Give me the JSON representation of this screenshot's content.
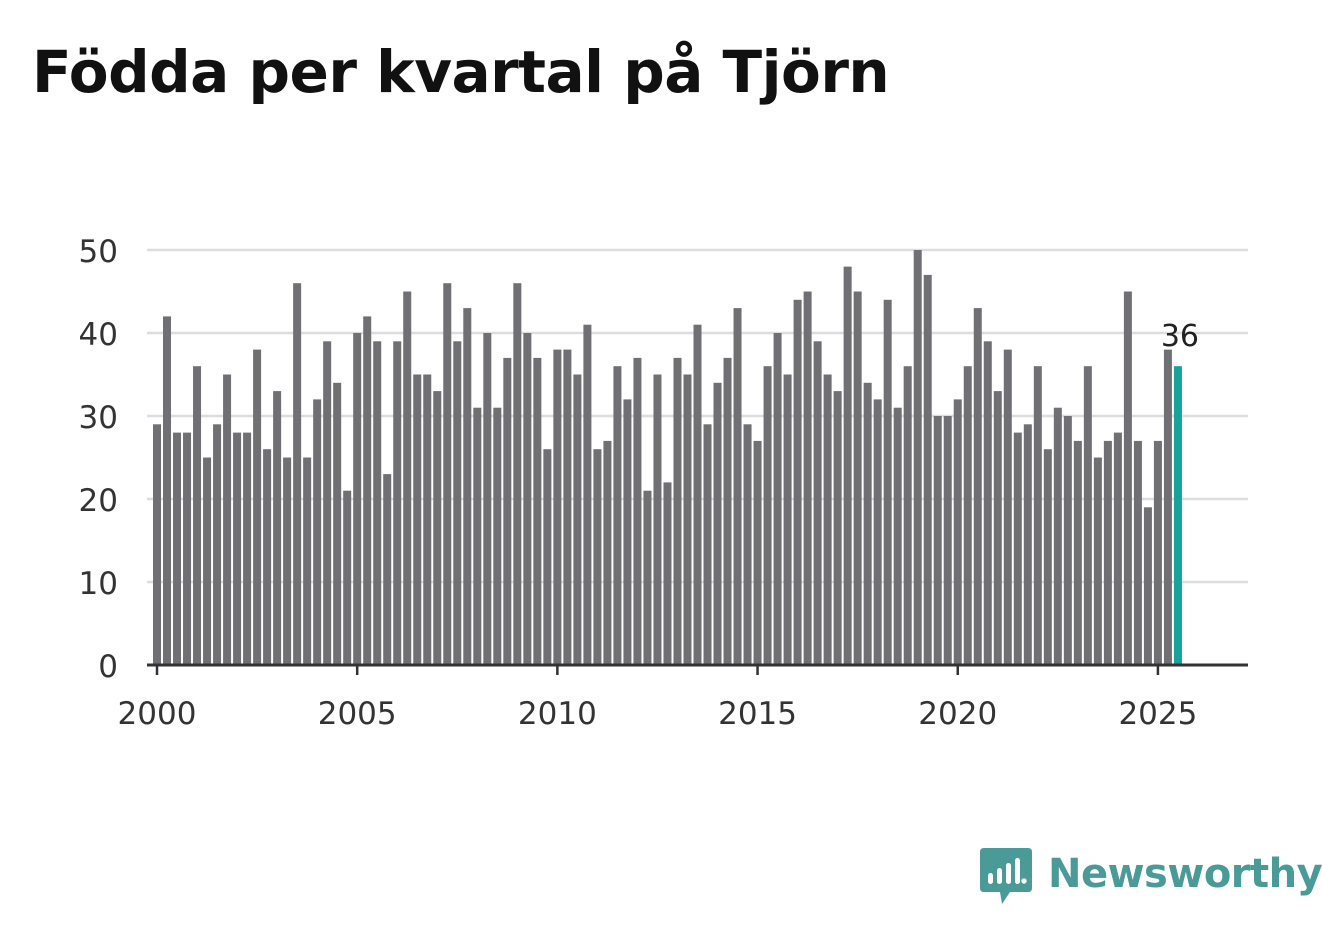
{
  "title": "Födda per kvartal på Tjörn",
  "brand": {
    "name": "Newsworthy",
    "icon": "newsworthy-logo-icon",
    "color": "#4a9a98"
  },
  "colors": {
    "bar": "#707074",
    "highlight": "#17a39b",
    "grid": "#dddddd",
    "axis": "#333333",
    "tick_text": "#333333"
  },
  "chart_data": {
    "type": "bar",
    "title": "Födda per kvartal på Tjörn",
    "xlabel": "",
    "ylabel": "",
    "x_start": 2000,
    "periods_per_year": 4,
    "values": [
      29,
      42,
      28,
      28,
      36,
      25,
      29,
      35,
      28,
      28,
      38,
      26,
      33,
      25,
      46,
      25,
      32,
      39,
      34,
      21,
      40,
      42,
      39,
      23,
      39,
      45,
      35,
      35,
      33,
      46,
      39,
      43,
      31,
      40,
      31,
      37,
      46,
      40,
      37,
      26,
      38,
      38,
      35,
      41,
      26,
      27,
      36,
      32,
      37,
      21,
      35,
      22,
      37,
      35,
      41,
      29,
      34,
      37,
      43,
      29,
      27,
      36,
      40,
      35,
      44,
      45,
      39,
      35,
      33,
      48,
      45,
      34,
      32,
      44,
      31,
      36,
      50,
      47,
      30,
      30,
      32,
      36,
      43,
      39,
      33,
      38,
      28,
      29,
      36,
      26,
      31,
      30,
      27,
      36,
      25,
      27,
      28,
      45,
      27,
      19,
      27,
      38,
      36
    ],
    "highlight_index": 102,
    "highlight_label": "36",
    "ylim": [
      0,
      50
    ],
    "xlim": [
      1999.75,
      2027.25
    ],
    "yticks": [
      0,
      10,
      20,
      30,
      40,
      50
    ],
    "ytick_labels": [
      "0",
      "10",
      "20",
      "30",
      "40",
      "50"
    ],
    "xticks": [
      2000,
      2005,
      2010,
      2015,
      2020,
      2025
    ],
    "xtick_labels": [
      "2000",
      "2005",
      "2010",
      "2015",
      "2020",
      "2025"
    ],
    "grid": true,
    "legend": "none"
  }
}
